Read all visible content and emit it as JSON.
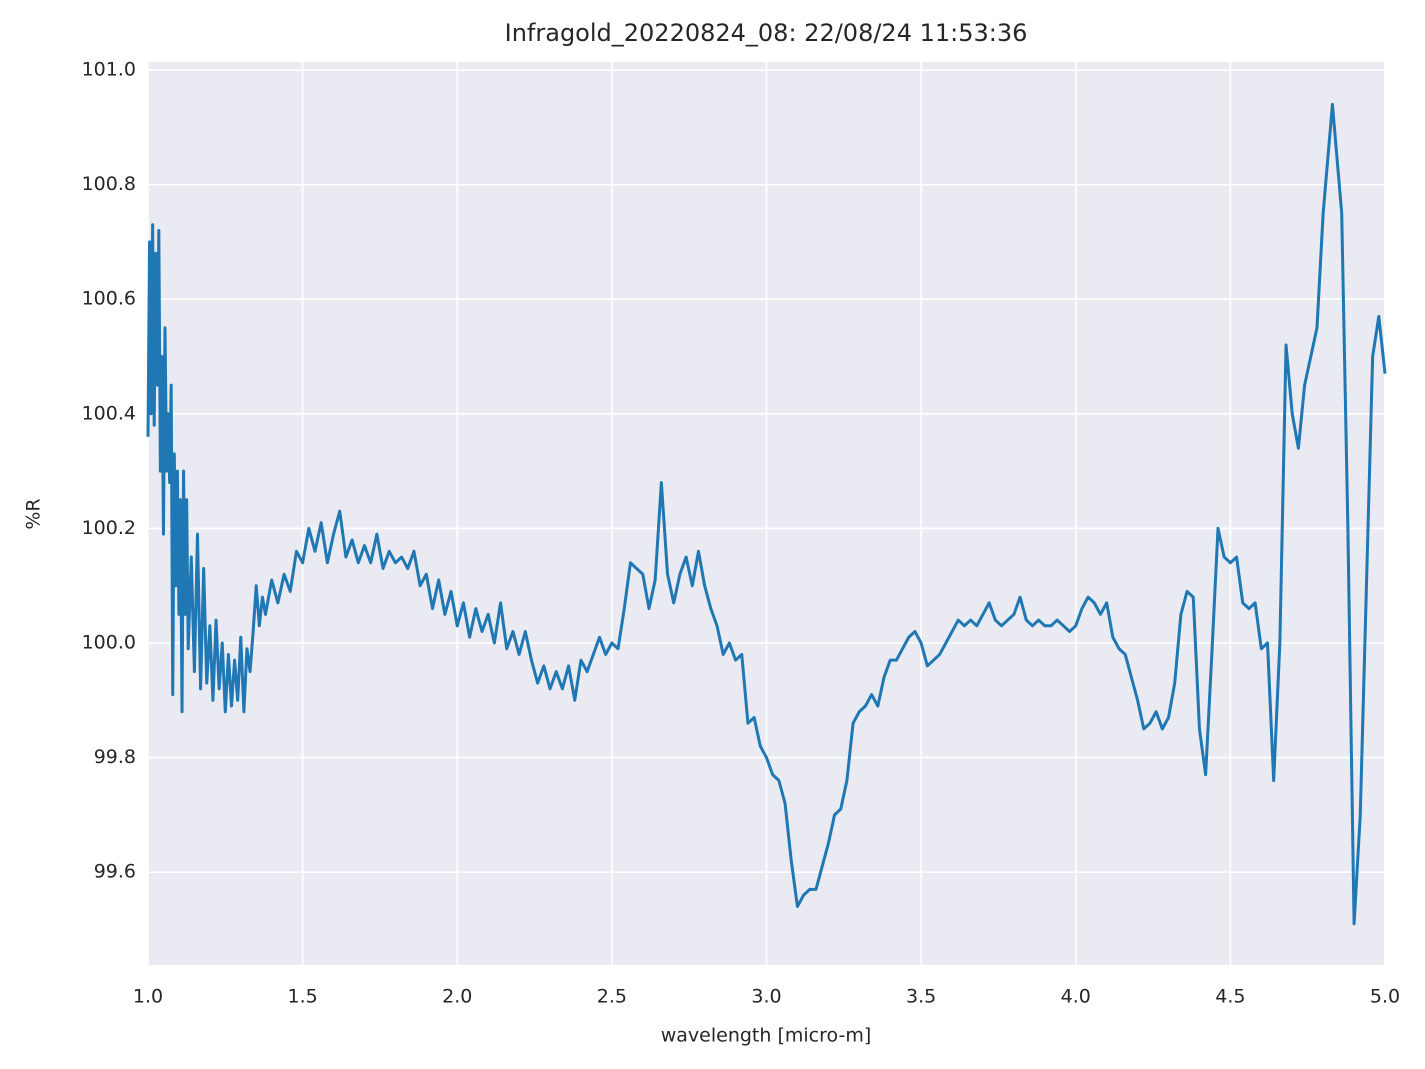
{
  "chart_data": {
    "type": "line",
    "title": "Infragold_20220824_08:  22/08/24 11:53:36",
    "x_label": "wavelength [micro-m]",
    "y_label": "%R",
    "color": "#1f77b4",
    "grid": true,
    "xlim": [
      1,
      5
    ],
    "ylim": [
      99.438,
      101.014
    ],
    "xticks": [
      {
        "value": 1,
        "label": "1.0"
      },
      1.5,
      {
        "value": 2,
        "label": "2.0"
      },
      2.5,
      {
        "value": 3,
        "label": "3.0"
      },
      3.5,
      {
        "value": 4,
        "label": "4.0"
      },
      4.5,
      {
        "value": 5,
        "label": "5.0"
      }
    ],
    "yticks": [
      99.6,
      99.8,
      {
        "value": 100,
        "label": "100.0"
      },
      100.2,
      100.4,
      100.6,
      100.8,
      {
        "value": 101,
        "label": "101.0"
      }
    ],
    "x": [
      1.0,
      1.005,
      1.01,
      1.015,
      1.02,
      1.025,
      1.03,
      1.035,
      1.04,
      1.045,
      1.05,
      1.055,
      1.06,
      1.065,
      1.07,
      1.075,
      1.08,
      1.085,
      1.09,
      1.095,
      1.1,
      1.105,
      1.11,
      1.115,
      1.12,
      1.125,
      1.13,
      1.14,
      1.15,
      1.16,
      1.17,
      1.18,
      1.19,
      1.2,
      1.21,
      1.22,
      1.23,
      1.24,
      1.25,
      1.26,
      1.27,
      1.28,
      1.29,
      1.3,
      1.31,
      1.32,
      1.33,
      1.34,
      1.35,
      1.36,
      1.37,
      1.38,
      1.4,
      1.42,
      1.44,
      1.46,
      1.48,
      1.5,
      1.52,
      1.54,
      1.56,
      1.58,
      1.6,
      1.62,
      1.64,
      1.66,
      1.68,
      1.7,
      1.72,
      1.74,
      1.76,
      1.78,
      1.8,
      1.82,
      1.84,
      1.86,
      1.88,
      1.9,
      1.92,
      1.94,
      1.96,
      1.98,
      2.0,
      2.02,
      2.04,
      2.06,
      2.08,
      2.1,
      2.12,
      2.14,
      2.16,
      2.18,
      2.2,
      2.22,
      2.24,
      2.26,
      2.28,
      2.3,
      2.32,
      2.34,
      2.36,
      2.38,
      2.4,
      2.42,
      2.44,
      2.46,
      2.48,
      2.5,
      2.52,
      2.54,
      2.56,
      2.58,
      2.6,
      2.62,
      2.64,
      2.66,
      2.68,
      2.7,
      2.72,
      2.74,
      2.76,
      2.78,
      2.8,
      2.82,
      2.84,
      2.86,
      2.88,
      2.9,
      2.92,
      2.94,
      2.96,
      2.98,
      3.0,
      3.02,
      3.04,
      3.06,
      3.08,
      3.1,
      3.12,
      3.14,
      3.16,
      3.18,
      3.2,
      3.22,
      3.24,
      3.26,
      3.28,
      3.3,
      3.32,
      3.34,
      3.36,
      3.38,
      3.4,
      3.42,
      3.44,
      3.46,
      3.48,
      3.5,
      3.52,
      3.54,
      3.56,
      3.58,
      3.6,
      3.62,
      3.64,
      3.66,
      3.68,
      3.7,
      3.72,
      3.74,
      3.76,
      3.78,
      3.8,
      3.82,
      3.84,
      3.86,
      3.88,
      3.9,
      3.92,
      3.94,
      3.96,
      3.98,
      4.0,
      4.02,
      4.04,
      4.06,
      4.08,
      4.1,
      4.12,
      4.14,
      4.16,
      4.18,
      4.2,
      4.22,
      4.24,
      4.26,
      4.28,
      4.3,
      4.32,
      4.34,
      4.36,
      4.38,
      4.4,
      4.42,
      4.44,
      4.46,
      4.48,
      4.5,
      4.52,
      4.54,
      4.56,
      4.58,
      4.6,
      4.62,
      4.64,
      4.66,
      4.68,
      4.7,
      4.72,
      4.74,
      4.76,
      4.78,
      4.8,
      4.83,
      4.86,
      4.88,
      4.9,
      4.92,
      4.94,
      4.96,
      4.98,
      5.0
    ],
    "values": [
      100.36,
      100.7,
      100.4,
      100.73,
      100.38,
      100.68,
      100.45,
      100.72,
      100.3,
      100.5,
      100.19,
      100.55,
      100.3,
      100.4,
      100.28,
      100.45,
      99.91,
      100.33,
      100.1,
      100.3,
      100.05,
      100.25,
      99.88,
      100.3,
      100.05,
      100.25,
      99.99,
      100.15,
      99.95,
      100.19,
      99.92,
      100.13,
      99.93,
      100.03,
      99.9,
      100.04,
      99.92,
      100.0,
      99.88,
      99.98,
      99.89,
      99.97,
      99.9,
      100.01,
      99.88,
      99.99,
      99.95,
      100.02,
      100.1,
      100.03,
      100.08,
      100.05,
      100.11,
      100.07,
      100.12,
      100.09,
      100.16,
      100.14,
      100.2,
      100.16,
      100.21,
      100.14,
      100.19,
      100.23,
      100.15,
      100.18,
      100.14,
      100.17,
      100.14,
      100.19,
      100.13,
      100.16,
      100.14,
      100.15,
      100.13,
      100.16,
      100.1,
      100.12,
      100.06,
      100.11,
      100.05,
      100.09,
      100.03,
      100.07,
      100.01,
      100.06,
      100.02,
      100.05,
      100.0,
      100.07,
      99.99,
      100.02,
      99.98,
      100.02,
      99.97,
      99.93,
      99.96,
      99.92,
      99.95,
      99.92,
      99.96,
      99.9,
      99.97,
      99.95,
      99.98,
      100.01,
      99.98,
      100.0,
      99.99,
      100.06,
      100.14,
      100.13,
      100.12,
      100.06,
      100.11,
      100.28,
      100.12,
      100.07,
      100.12,
      100.15,
      100.1,
      100.16,
      100.1,
      100.06,
      100.03,
      99.98,
      100.0,
      99.97,
      99.98,
      99.86,
      99.87,
      99.82,
      99.8,
      99.77,
      99.76,
      99.72,
      99.62,
      99.54,
      99.56,
      99.57,
      99.57,
      99.61,
      99.65,
      99.7,
      99.71,
      99.76,
      99.86,
      99.88,
      99.89,
      99.91,
      99.89,
      99.94,
      99.97,
      99.97,
      99.99,
      100.01,
      100.02,
      100.0,
      99.96,
      99.97,
      99.98,
      100.0,
      100.02,
      100.04,
      100.03,
      100.04,
      100.03,
      100.05,
      100.07,
      100.04,
      100.03,
      100.04,
      100.05,
      100.08,
      100.04,
      100.03,
      100.04,
      100.03,
      100.03,
      100.04,
      100.03,
      100.02,
      100.03,
      100.06,
      100.08,
      100.07,
      100.05,
      100.07,
      100.01,
      99.99,
      99.98,
      99.94,
      99.9,
      99.85,
      99.86,
      99.88,
      99.85,
      99.87,
      99.93,
      100.05,
      100.09,
      100.08,
      99.85,
      99.77,
      99.98,
      100.2,
      100.15,
      100.14,
      100.15,
      100.07,
      100.06,
      100.07,
      99.99,
      100.0,
      99.76,
      100.0,
      100.52,
      100.4,
      100.34,
      100.45,
      100.5,
      100.55,
      100.75,
      100.94,
      100.75,
      100.2,
      99.51,
      99.7,
      100.1,
      100.5,
      100.57,
      100.47
    ]
  }
}
